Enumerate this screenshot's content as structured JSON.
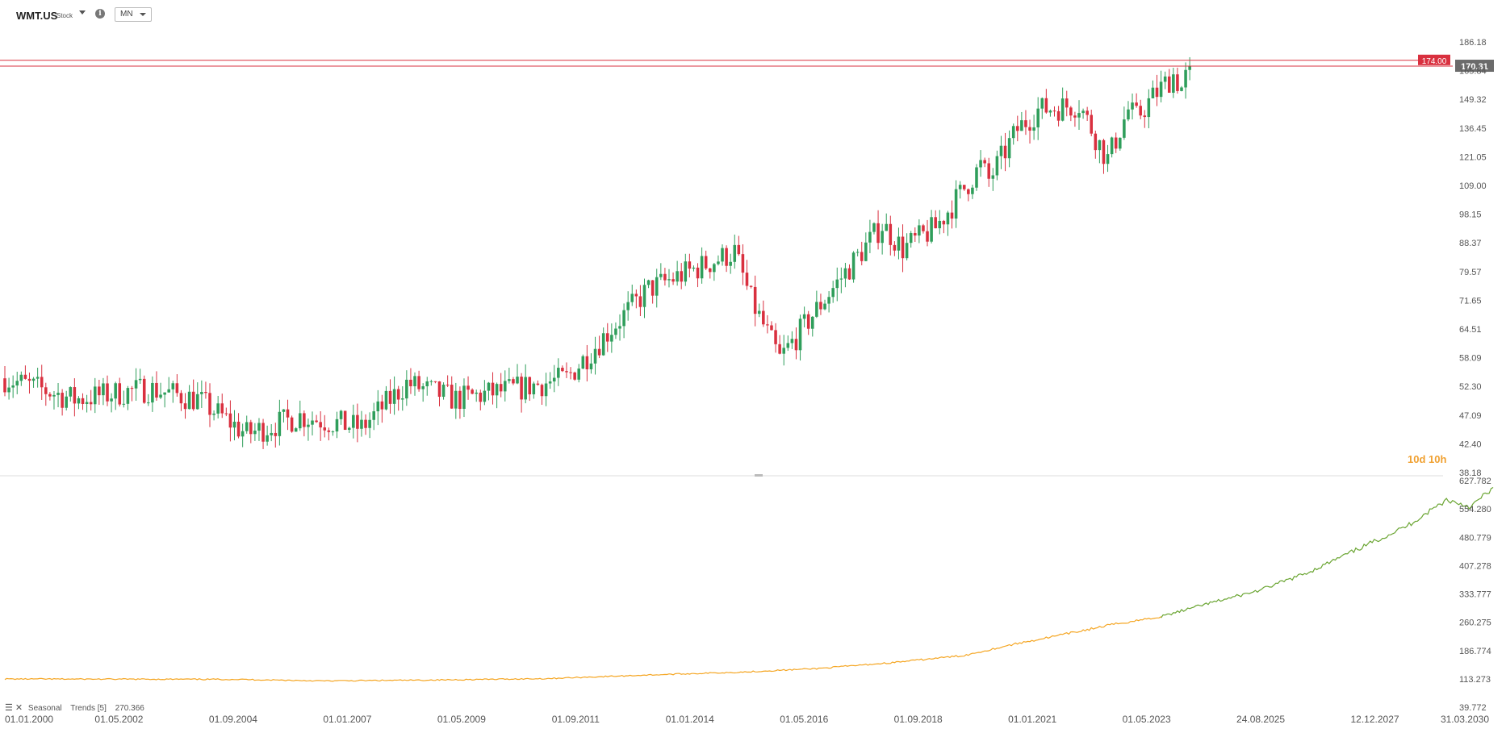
{
  "header": {
    "symbol": "WMT.US",
    "type": "Stock",
    "timeframe": "MN",
    "info_icon": "info-icon"
  },
  "colors": {
    "up": "#2f9e5b",
    "down": "#d9303f",
    "level": "#d9303f",
    "level_tag": "#d9303f",
    "price_tag": "#6b6b6b",
    "seasonal_hist": "#f5a623",
    "seasonal_proj": "#6aa532",
    "grid_text": "#555555",
    "countdown": "#f0a030"
  },
  "countdown": "10d 10h",
  "price_axis": {
    "tick_labels": [
      "186.18",
      "165.84",
      "149.32",
      "136.45",
      "121.05",
      "109.00",
      "98.15",
      "88.37",
      "79.57",
      "71.65",
      "64.51",
      "58.09",
      "52.30",
      "47.09",
      "42.40",
      "38.18"
    ]
  },
  "lower_axis": {
    "tick_labels": [
      "627.782",
      "554.280",
      "480.779",
      "407.278",
      "333.777",
      "260.275",
      "186.774",
      "113.273",
      "39.772"
    ]
  },
  "time_axis": {
    "tick_labels": [
      "01.01.2000",
      "01.05.2002",
      "01.09.2004",
      "01.01.2007",
      "01.05.2009",
      "01.09.2011",
      "01.01.2014",
      "01.05.2016",
      "01.09.2018",
      "01.01.2021",
      "01.05.2023",
      "24.08.2025",
      "12.12.2027",
      "31.03.2030"
    ]
  },
  "levels": {
    "resistance": "174.00",
    "last_price": "170.31"
  },
  "indicator": {
    "name": "Seasonal",
    "params": "Trends [5]",
    "value": "270.366"
  },
  "chart_data": [
    {
      "type": "candlestick",
      "interval": "monthly",
      "scale": "log",
      "ylim": [
        38.18,
        186.18
      ],
      "x_range": [
        "2000-01",
        "2030-03"
      ],
      "x_anchors": [
        [
          "2000-01",
          54.0
        ],
        [
          "2001-06",
          50.0
        ],
        [
          "2002-12",
          52.0
        ],
        [
          "2003-12",
          50.0
        ],
        [
          "2004-12",
          44.0
        ],
        [
          "2006-01",
          47.0
        ],
        [
          "2007-04",
          45.0
        ],
        [
          "2008-03",
          53.0
        ],
        [
          "2009-03",
          50.0
        ],
        [
          "2010-06",
          52.0
        ],
        [
          "2011-06",
          54.0
        ],
        [
          "2012-05",
          65.0
        ],
        [
          "2013-02",
          75.0
        ],
        [
          "2014-11",
          86.0
        ],
        [
          "2015-03",
          72.0
        ],
        [
          "2015-10",
          58.0
        ],
        [
          "2016-08",
          71.0
        ],
        [
          "2017-11",
          95.0
        ],
        [
          "2018-04",
          87.0
        ],
        [
          "2018-12",
          94.0
        ],
        [
          "2019-11",
          118.0
        ],
        [
          "2020-01",
          112.0
        ],
        [
          "2020-08",
          135.0
        ],
        [
          "2021-01",
          145.0
        ],
        [
          "2021-11",
          148.0
        ],
        [
          "2022-05",
          124.0
        ],
        [
          "2022-06",
          121.0
        ],
        [
          "2022-11",
          145.0
        ],
        [
          "2023-01",
          141.0
        ],
        [
          "2023-05",
          152.0
        ],
        [
          "2023-10",
          165.0
        ],
        [
          "2023-12",
          157.0
        ],
        [
          "2024-02",
          170.31
        ]
      ],
      "last_price": 170.31,
      "levels": [
        174.0
      ]
    },
    {
      "type": "line",
      "name": "Seasonal",
      "ylim": [
        39.772,
        627.782
      ],
      "historical": [
        [
          2000.0,
          113.0
        ],
        [
          2004.7,
          112.0
        ],
        [
          2006.5,
          108.0
        ],
        [
          2008.5,
          110.0
        ],
        [
          2011.0,
          114.0
        ],
        [
          2013.0,
          123.0
        ],
        [
          2015.0,
          131.0
        ],
        [
          2016.5,
          140.0
        ],
        [
          2018.0,
          155.0
        ],
        [
          2019.5,
          174.0
        ],
        [
          2020.5,
          203.0
        ],
        [
          2021.5,
          228.0
        ],
        [
          2022.5,
          254.0
        ],
        [
          2023.5,
          275.0
        ]
      ],
      "projection": [
        [
          2023.5,
          275.0
        ],
        [
          2024.5,
          310.0
        ],
        [
          2025.5,
          343.0
        ],
        [
          2026.5,
          390.0
        ],
        [
          2027.5,
          450.0
        ],
        [
          2028.5,
          510.0
        ],
        [
          2029.3,
          578.0
        ],
        [
          2029.8,
          560.0
        ],
        [
          2030.25,
          610.0
        ]
      ]
    }
  ]
}
